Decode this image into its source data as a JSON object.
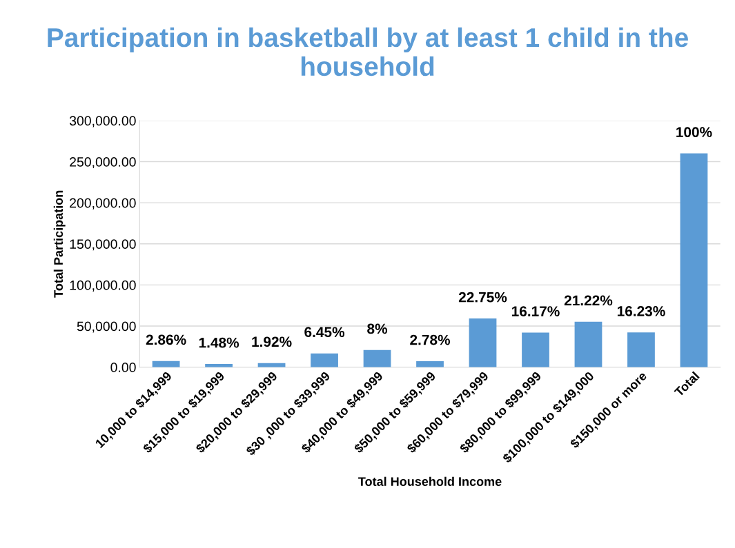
{
  "chart_data": {
    "type": "bar",
    "title": "Participation in basketball by at least 1 child in the household",
    "xlabel": "Total Household Income",
    "ylabel": "Total Participation",
    "categories": [
      "10,000 to $14,999",
      "$15,000 to $19,999",
      "$20,000 to $29,999",
      "$30 ,000 to $39,999",
      "$40,000 to $49,999",
      "$50,000 to $59,999",
      "$60,000 to $79,999",
      "$80,000 to $99,999",
      "$100,000 to $149,000",
      "$150,000 or more",
      "Total"
    ],
    "values": [
      7440,
      3850,
      4990,
      16770,
      20800,
      7230,
      59150,
      42040,
      55170,
      42200,
      260000
    ],
    "annotations": [
      {
        "text": "2.86%",
        "x": "10,000 to $14,999",
        "y": 7440
      },
      {
        "text": "1.48%",
        "x": "$15,000 to $19,999",
        "y": 3850
      },
      {
        "text": "1.92%",
        "x": "$20,000 to $29,999",
        "y": 4990
      },
      {
        "text": "6.45%",
        "x": "$30 ,000 to $39,999",
        "y": 16770
      },
      {
        "text": "8%",
        "x": "$40,000 to $49,999",
        "y": 20800
      },
      {
        "text": "2.78%",
        "x": "$50,000 to $59,999",
        "y": 7230
      },
      {
        "text": "22.75%",
        "x": "$60,000 to $79,999",
        "y": 59150
      },
      {
        "text": "16.17%",
        "x": "$80,000 to $99,999",
        "y": 42040
      },
      {
        "text": "21.22%",
        "x": "$100,000 to $149,000",
        "y": 55170
      },
      {
        "text": "16.23%",
        "x": "$150,000 or more",
        "y": 42200
      },
      {
        "text": "100%",
        "x": "Total",
        "y": 260000
      }
    ],
    "color": "#5b9bd5",
    "ylim": [
      0,
      300000
    ],
    "yticks": [
      {
        "value": 0,
        "label": "0.00"
      },
      {
        "value": 50000,
        "label": "50,000.00"
      },
      {
        "value": 100000,
        "label": "100,000.00"
      },
      {
        "value": 150000,
        "label": "150,000.00"
      },
      {
        "value": 200000,
        "label": "200,000.00"
      },
      {
        "value": 250000,
        "label": "250,000.00"
      },
      {
        "value": 300000,
        "label": "300,000.00"
      }
    ],
    "grid": "y",
    "legend": false
  }
}
